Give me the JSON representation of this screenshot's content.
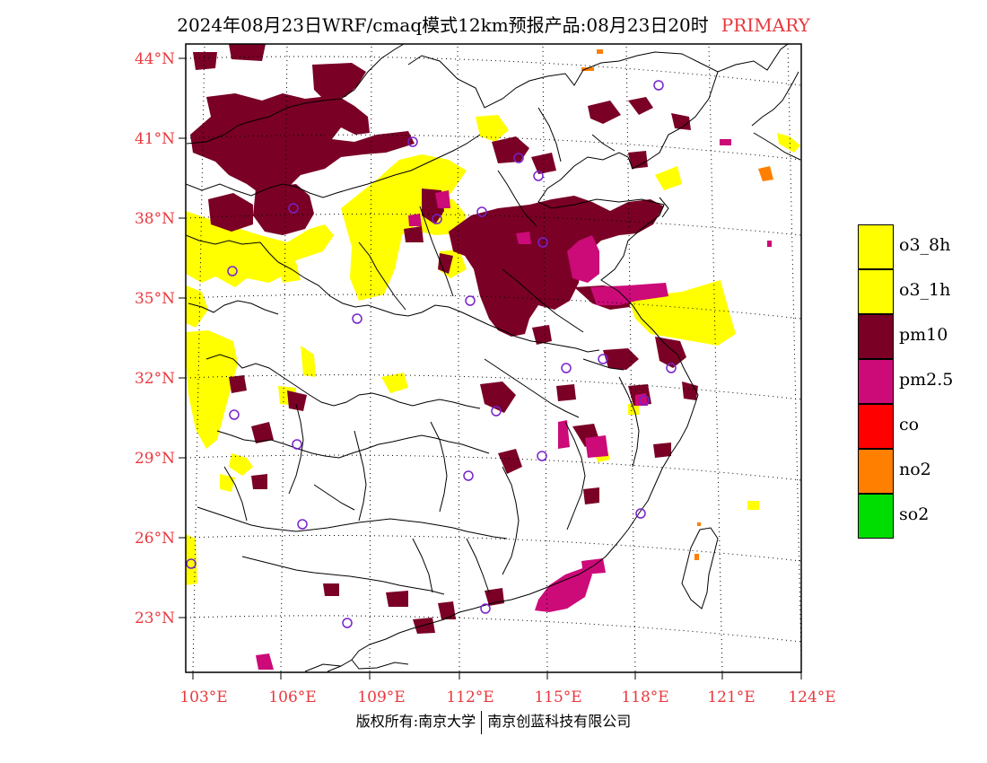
{
  "title": {
    "main": "2024年08月23日WRF/cmaq模式12km预报产品:08月23日20时",
    "tag": "PRIMARY"
  },
  "colors": {
    "axis_label": "#e8383d",
    "o3_8h": "#ffff00",
    "o3_1h": "#ffff00",
    "pm10": "#7a0026",
    "pm25": "#cc0a78",
    "co": "#ff0000",
    "no2": "#ff7f00",
    "so2": "#00dd00",
    "station": "#7722cc"
  },
  "axes": {
    "lon_labels": [
      "103°E",
      "106°E",
      "109°E",
      "112°E",
      "115°E",
      "118°E",
      "121°E",
      "124°E"
    ],
    "lat_labels": [
      "44°N",
      "41°N",
      "38°N",
      "35°N",
      "32°N",
      "29°N",
      "26°N",
      "23°N"
    ]
  },
  "legend": [
    {
      "key": "o3_8h",
      "label": "o3_8h",
      "color": "#ffff00"
    },
    {
      "key": "o3_1h",
      "label": "o3_1h",
      "color": "#ffff00"
    },
    {
      "key": "pm10",
      "label": "pm10",
      "color": "#7a0026"
    },
    {
      "key": "pm25",
      "label": "pm2.5",
      "color": "#cc0a78"
    },
    {
      "key": "co",
      "label": "co",
      "color": "#ff0000"
    },
    {
      "key": "no2",
      "label": "no2",
      "color": "#ff7f00"
    },
    {
      "key": "so2",
      "label": "so2",
      "color": "#00dd00"
    }
  ],
  "footer": {
    "left": "版权所有:南京大学",
    "right": "南京创蓝科技有限公司"
  }
}
